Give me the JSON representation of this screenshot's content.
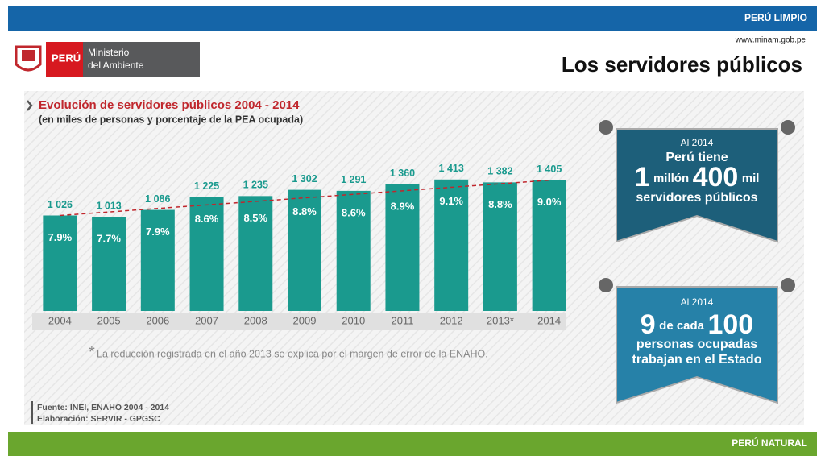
{
  "header": {
    "banner": "PERÚ LIMPIO",
    "logo_country": "PERÚ",
    "logo_ministry_1": "Ministerio",
    "logo_ministry_2": "del Ambiente",
    "url": "www.minam.gob.pe",
    "title": "Los servidores públicos"
  },
  "chart_data": {
    "type": "bar",
    "title": "Evolución de servidores públicos 2004 - 2014",
    "subtitle": "(en miles de personas y porcentaje de la PEA ocupada)",
    "categories": [
      "2004",
      "2005",
      "2006",
      "2007",
      "2008",
      "2009",
      "2010",
      "2011",
      "2012",
      "2013*",
      "2014"
    ],
    "values": [
      1026,
      1013,
      1086,
      1225,
      1235,
      1302,
      1291,
      1360,
      1413,
      1382,
      1405
    ],
    "value_labels": [
      "1 026",
      "1 013",
      "1 086",
      "1 225",
      "1 235",
      "1 302",
      "1 291",
      "1 360",
      "1 413",
      "1 382",
      "1 405"
    ],
    "share_values": [
      7.9,
      7.7,
      7.9,
      8.6,
      8.5,
      8.8,
      8.6,
      8.9,
      9.1,
      8.8,
      9.0
    ],
    "share_labels": [
      "7.9%",
      "7.7%",
      "7.9%",
      "8.6%",
      "8.5%",
      "8.8%",
      "8.6%",
      "8.9%",
      "9.1%",
      "8.8%",
      "9.0%"
    ],
    "color": "#1a9a8e",
    "trend_color": "#c0272d",
    "footnote_mark": "*",
    "footnote": "La reducción registrada en el año 2013 se explica por el margen de error de la ENAHO.",
    "source": "Fuente: INEI, ENAHO 2004 - 2014",
    "credit": "Elaboración: SERVIR - GPGSC"
  },
  "callout_1": {
    "intro": "Al 2014",
    "line1": "Perú tiene",
    "big1": "1",
    "word1": "millón",
    "big2": "400",
    "word2": "mil",
    "line3": "servidores públicos"
  },
  "callout_2": {
    "intro": "Al 2014",
    "big1": "9",
    "word1": "de cada",
    "big2": "100",
    "line2": "personas ocupadas",
    "line3": "trabajan en el Estado"
  },
  "footer": {
    "banner": "PERÚ NATURAL"
  }
}
